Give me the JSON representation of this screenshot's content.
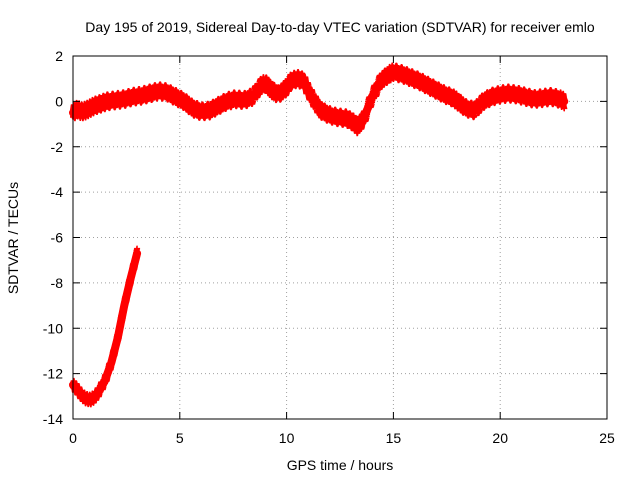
{
  "chart_data": {
    "type": "scatter",
    "title": "Day 195 of 2019, Sidereal Day-to-day VTEC variation (SDTVAR) for receiver emlo",
    "xlabel": "GPS time / hours",
    "ylabel": "SDTVAR / TECUs",
    "xlim": [
      0,
      25
    ],
    "ylim": [
      -14,
      2
    ],
    "xticks": [
      0,
      5,
      10,
      15,
      20,
      25
    ],
    "yticks": [
      2,
      0,
      -2,
      -4,
      -6,
      -8,
      -10,
      -12,
      -14
    ],
    "grid": true,
    "series": [
      {
        "name": "main",
        "color": "#ff0000",
        "spread": 0.38,
        "x": [
          0.0,
          0.2,
          0.4,
          0.6,
          0.8,
          1.0,
          1.3,
          1.6,
          2.0,
          2.4,
          2.8,
          3.2,
          3.6,
          4.0,
          4.4,
          4.8,
          5.2,
          5.6,
          6.0,
          6.4,
          6.8,
          7.2,
          7.6,
          8.0,
          8.4,
          8.8,
          9.0,
          9.3,
          9.6,
          10.0,
          10.2,
          10.5,
          10.8,
          11.0,
          11.3,
          11.6,
          12.0,
          12.4,
          12.8,
          13.1,
          13.3,
          13.6,
          14.0,
          14.4,
          14.8,
          15.0,
          15.4,
          15.8,
          16.2,
          16.6,
          17.0,
          17.4,
          17.8,
          18.0,
          18.4,
          18.8,
          19.2,
          19.6,
          20.0,
          20.4,
          20.8,
          21.2,
          21.6,
          22.0,
          22.4,
          22.8,
          23.0
        ],
        "y": [
          -0.5,
          -0.35,
          -0.45,
          -0.4,
          -0.3,
          -0.2,
          -0.1,
          0.0,
          0.05,
          0.1,
          0.2,
          0.25,
          0.35,
          0.45,
          0.4,
          0.2,
          0.0,
          -0.3,
          -0.45,
          -0.4,
          -0.2,
          0.0,
          0.1,
          0.05,
          0.2,
          0.7,
          0.8,
          0.5,
          0.3,
          0.6,
          0.9,
          1.0,
          0.9,
          0.5,
          0.0,
          -0.4,
          -0.6,
          -0.7,
          -0.75,
          -0.9,
          -1.1,
          -0.8,
          0.2,
          0.9,
          1.2,
          1.3,
          1.2,
          1.05,
          0.9,
          0.7,
          0.5,
          0.3,
          0.15,
          0.0,
          -0.3,
          -0.4,
          0.0,
          0.2,
          0.3,
          0.35,
          0.3,
          0.2,
          0.1,
          0.15,
          0.2,
          0.1,
          0.0
        ]
      },
      {
        "name": "start",
        "color": "#ff0000",
        "spread": 0.2,
        "x": [
          0.0,
          0.2,
          0.4,
          0.6,
          0.8,
          1.0,
          1.2,
          1.5,
          1.8,
          2.1,
          2.4,
          2.7,
          3.0
        ],
        "y": [
          -12.5,
          -12.7,
          -12.95,
          -13.1,
          -13.15,
          -13.05,
          -12.8,
          -12.3,
          -11.5,
          -10.4,
          -9.0,
          -7.8,
          -6.7
        ]
      }
    ]
  }
}
